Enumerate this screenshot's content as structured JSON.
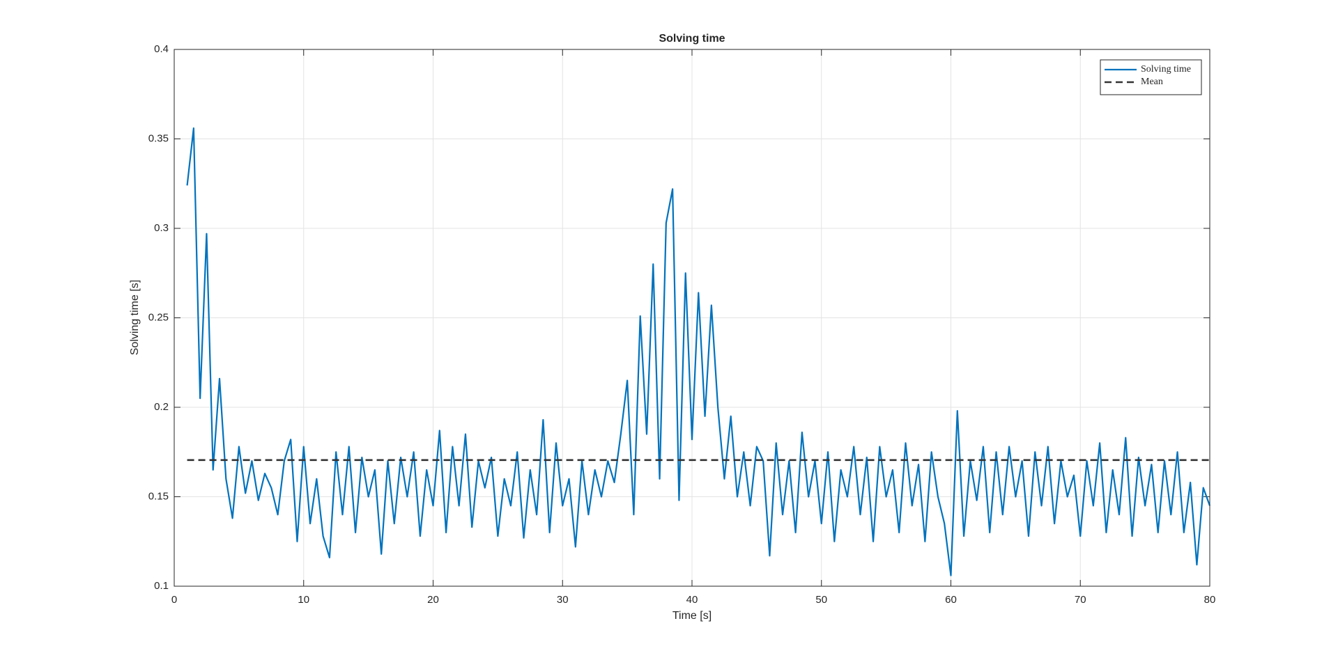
{
  "chart_data": {
    "type": "line",
    "title": "Solving time",
    "x_label": "Time [s]",
    "y_label": "Solving time [s]",
    "xlim": [
      0,
      80
    ],
    "ylim": [
      0.1,
      0.4
    ],
    "xticks": [
      0,
      10,
      20,
      30,
      40,
      50,
      60,
      70,
      80
    ],
    "yticks": [
      0.1,
      0.15,
      0.2,
      0.25,
      0.3,
      0.35,
      0.4
    ],
    "grid": true,
    "legend": "upper-right",
    "series": [
      {
        "name": "Solving time",
        "color": "#0072bd",
        "dashed": false,
        "x": [
          1,
          1.5,
          2,
          2.5,
          3,
          3.5,
          4,
          4.5,
          5,
          5.5,
          6,
          6.5,
          7,
          7.5,
          8,
          8.5,
          9,
          9.5,
          10,
          10.5,
          11,
          11.5,
          12,
          12.5,
          13,
          13.5,
          14,
          14.5,
          15,
          15.5,
          16,
          16.5,
          17,
          17.5,
          18,
          18.5,
          19,
          19.5,
          20,
          20.5,
          21,
          21.5,
          22,
          22.5,
          23,
          23.5,
          24,
          24.5,
          25,
          25.5,
          26,
          26.5,
          27,
          27.5,
          28,
          28.5,
          29,
          29.5,
          30,
          30.5,
          31,
          31.5,
          32,
          32.5,
          33,
          33.5,
          34,
          34.5,
          35,
          35.5,
          36,
          36.5,
          37,
          37.5,
          38,
          38.5,
          39,
          39.5,
          40,
          40.5,
          41,
          41.5,
          42,
          42.5,
          43,
          43.5,
          44,
          44.5,
          45,
          45.5,
          46,
          46.5,
          47,
          47.5,
          48,
          48.5,
          49,
          49.5,
          50,
          50.5,
          51,
          51.5,
          52,
          52.5,
          53,
          53.5,
          54,
          54.5,
          55,
          55.5,
          56,
          56.5,
          57,
          57.5,
          58,
          58.5,
          59,
          59.5,
          60,
          60.5,
          61,
          61.5,
          62,
          62.5,
          63,
          63.5,
          64,
          64.5,
          65,
          65.5,
          66,
          66.5,
          67,
          67.5,
          68,
          68.5,
          69,
          69.5,
          70,
          70.5,
          71,
          71.5,
          72,
          72.5,
          73,
          73.5,
          74,
          74.5,
          75,
          75.5,
          76,
          76.5,
          77,
          77.5,
          78,
          78.5,
          79,
          79.5,
          80
        ],
        "values": [
          0.324,
          0.356,
          0.205,
          0.297,
          0.165,
          0.216,
          0.16,
          0.138,
          0.178,
          0.152,
          0.17,
          0.148,
          0.163,
          0.155,
          0.14,
          0.17,
          0.182,
          0.125,
          0.178,
          0.135,
          0.16,
          0.128,
          0.116,
          0.175,
          0.14,
          0.178,
          0.13,
          0.172,
          0.15,
          0.165,
          0.118,
          0.17,
          0.135,
          0.172,
          0.15,
          0.175,
          0.128,
          0.165,
          0.145,
          0.187,
          0.13,
          0.178,
          0.145,
          0.185,
          0.133,
          0.17,
          0.155,
          0.172,
          0.128,
          0.16,
          0.145,
          0.175,
          0.127,
          0.165,
          0.14,
          0.193,
          0.13,
          0.18,
          0.145,
          0.16,
          0.122,
          0.17,
          0.14,
          0.165,
          0.15,
          0.17,
          0.158,
          0.185,
          0.215,
          0.14,
          0.251,
          0.185,
          0.28,
          0.16,
          0.303,
          0.322,
          0.148,
          0.275,
          0.182,
          0.264,
          0.195,
          0.257,
          0.2,
          0.16,
          0.195,
          0.15,
          0.175,
          0.145,
          0.178,
          0.17,
          0.117,
          0.18,
          0.14,
          0.17,
          0.13,
          0.186,
          0.15,
          0.17,
          0.135,
          0.175,
          0.125,
          0.165,
          0.15,
          0.178,
          0.14,
          0.172,
          0.125,
          0.178,
          0.15,
          0.165,
          0.13,
          0.18,
          0.145,
          0.168,
          0.125,
          0.175,
          0.15,
          0.135,
          0.106,
          0.198,
          0.128,
          0.17,
          0.148,
          0.178,
          0.13,
          0.175,
          0.14,
          0.178,
          0.15,
          0.17,
          0.128,
          0.175,
          0.145,
          0.178,
          0.135,
          0.17,
          0.15,
          0.162,
          0.128,
          0.17,
          0.145,
          0.18,
          0.13,
          0.165,
          0.14,
          0.183,
          0.128,
          0.172,
          0.145,
          0.168,
          0.13,
          0.17,
          0.14,
          0.175,
          0.13,
          0.158,
          0.112,
          0.155,
          0.145
        ]
      },
      {
        "name": "Mean",
        "color": "#333333",
        "dashed": true,
        "x": [
          1,
          80
        ],
        "values": [
          0.1705,
          0.1705
        ]
      }
    ]
  }
}
